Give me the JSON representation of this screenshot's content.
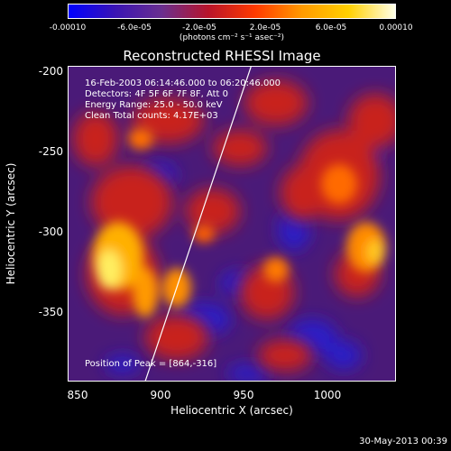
{
  "colorbar": {
    "ticks": [
      "-0.00010",
      "-6.0e-05",
      "-2.0e-05",
      "2.0e-05",
      "6.0e-05",
      "0.00010"
    ],
    "unit": "(photons cm⁻² s⁻¹ asec⁻²)",
    "colors": [
      "#0000ff",
      "#3a14b4",
      "#6a2f8f",
      "#b8142a",
      "#ff3a00",
      "#ff9a00",
      "#ffd000",
      "#ffffe8"
    ]
  },
  "title": "Reconstructed RHESSI Image",
  "annotations": {
    "line1": "16-Feb-2003 06:14:46.000  to 06:20:46.000",
    "line2": "Detectors: 4F 5F 6F 7F 8F, Att 0",
    "line3": "Energy Range: 25.0 - 50.0 keV",
    "line4": "Clean     Total counts: 4.17E+03",
    "peak": "Position of Peak = [864,-316]"
  },
  "axes": {
    "x_ticks": [
      "850",
      "900",
      "950",
      "1000"
    ],
    "y_ticks": [
      "-200",
      "-250",
      "-300",
      "-350"
    ],
    "xlabel": "Heliocentric X (arcsec)",
    "ylabel": "Heliocentric Y (arcsec)",
    "xlim": [
      842,
      1040
    ],
    "ylim": [
      -391,
      -197
    ]
  },
  "limb_line": {
    "x": [
      888,
      952
    ],
    "y": [
      -391,
      -197
    ],
    "color": "#ffffff"
  },
  "footer_date": "30-May-2013 00:39"
}
